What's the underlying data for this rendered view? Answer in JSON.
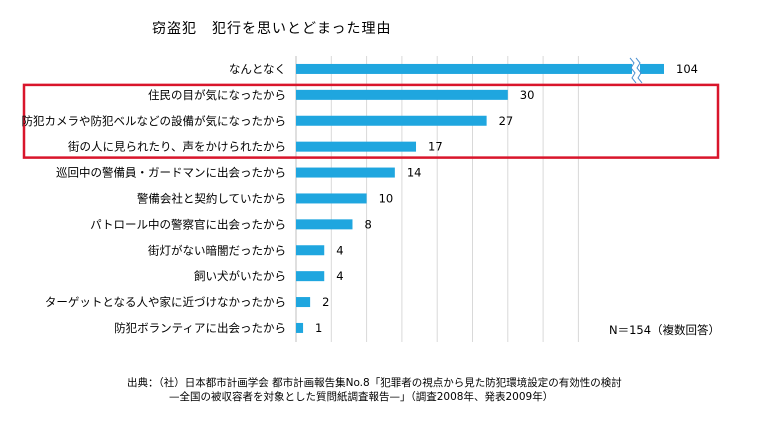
{
  "chart_data": {
    "type": "bar",
    "orientation": "horizontal",
    "title": "窃盗犯　犯行を思いとどまった理由",
    "categories": [
      "なんとなく",
      "住民の目が気になったから",
      "防犯カメラや防犯ベルなどの設備が気になったから",
      "街の人に見られたり、声をかけられたから",
      "巡回中の警備員・ガードマンに出会ったから",
      "警備会社と契約していたから",
      "パトロール中の警察官に出会ったから",
      "街灯がない暗闇だったから",
      "飼い犬がいたから",
      "ターゲットとなる人や家に近づけなかったから",
      "防犯ボランティアに出会ったから"
    ],
    "values": [
      104,
      30,
      27,
      17,
      14,
      10,
      8,
      4,
      4,
      2,
      1
    ],
    "xlim": [
      0,
      35
    ],
    "axis_break": true,
    "grid": true,
    "highlighted_categories": [
      1,
      2,
      3
    ],
    "bar_color": "#1fa6df",
    "highlight_color": "#d9152b",
    "grid_color": "#d9d9d9",
    "note": "N＝154（複数回答）"
  },
  "source": {
    "line1": "出典：（社）日本都市計画学会 都市計画報告集No.8「犯罪者の視点から見た防犯環境設定の有効性の検討",
    "line2": "—全国の被収容者を対象とした質問紙調査報告—」（調査2008年、発表2009年）"
  }
}
